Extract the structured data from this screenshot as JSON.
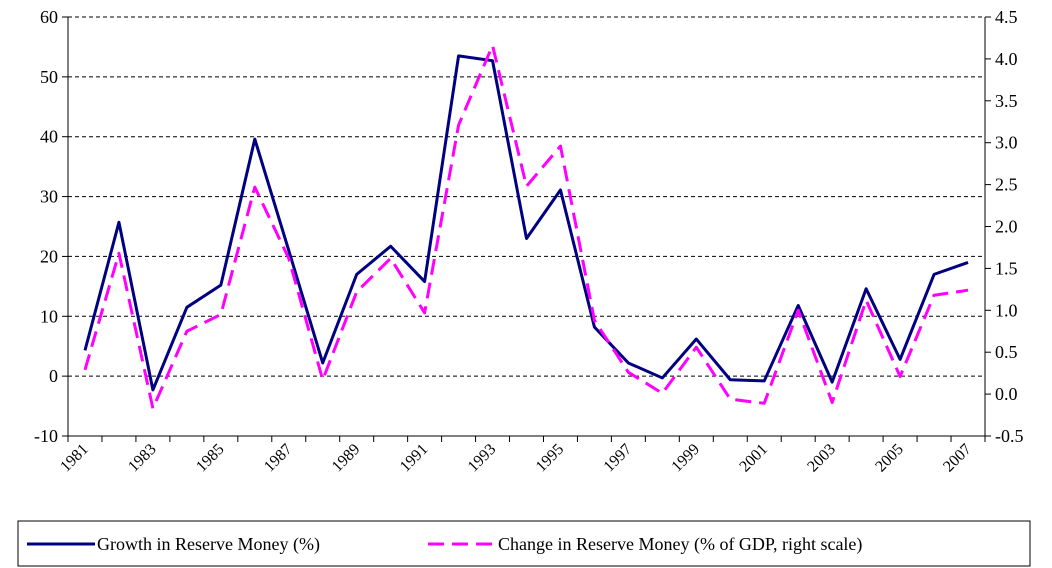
{
  "chart_data": {
    "type": "line",
    "categories": [
      "1981",
      null,
      "1983",
      null,
      "1985",
      null,
      "1987",
      null,
      "1989",
      null,
      "1991",
      null,
      "1993",
      null,
      "1995",
      null,
      "1997",
      null,
      "1999",
      null,
      "2001",
      null,
      "2003",
      null,
      "2005",
      null,
      "2007"
    ],
    "series": [
      {
        "name": "Growth in Reserve Money (%)",
        "color": "#000080",
        "dashed": false,
        "values": [
          4.3,
          25.7,
          -2.3,
          11.5,
          15.2,
          39.6,
          21,
          2.2,
          17,
          21.7,
          15.8,
          53.5,
          52.7,
          23,
          31.1,
          8.2,
          2.2,
          -0.3,
          6.2,
          -0.6,
          -0.8,
          11.8,
          -1.0,
          14.6,
          2.8,
          17,
          19
        ]
      },
      {
        "name": "Change in Reserve Money (% of GDP, right scale)",
        "color": "#ff00ff",
        "dashed": true,
        "axis": "y2",
        "values": [
          0.29,
          1.68,
          -0.17,
          0.75,
          0.95,
          2.47,
          1.62,
          0.17,
          1.22,
          1.62,
          0.97,
          3.21,
          4.16,
          2.48,
          2.96,
          0.88,
          0.26,
          0.01,
          0.56,
          -0.06,
          -0.11,
          1.0,
          -0.1,
          1.12,
          0.21,
          1.18,
          1.24
        ]
      }
    ],
    "ylim": [
      -10,
      60
    ],
    "yticks": [
      -10,
      0,
      10,
      20,
      30,
      40,
      50,
      60
    ],
    "y2lim": [
      -0.5,
      4.5
    ],
    "y2ticks": [
      {
        "value": -0.5,
        "label": "-0.5"
      },
      {
        "value": 0,
        "label": "0.0"
      },
      {
        "value": 0.5,
        "label": "0.5"
      },
      {
        "value": 1,
        "label": "1.0"
      },
      {
        "value": 1.5,
        "label": "1.5"
      },
      {
        "value": 2,
        "label": "2.0"
      },
      {
        "value": 2.5,
        "label": "2.5"
      },
      {
        "value": 3,
        "label": "3.0"
      },
      {
        "value": 3.5,
        "label": "3.5"
      },
      {
        "value": 4,
        "label": "4.0"
      },
      {
        "value": 4.5,
        "label": "4.5"
      }
    ],
    "grid": true,
    "legend": "bottom"
  }
}
